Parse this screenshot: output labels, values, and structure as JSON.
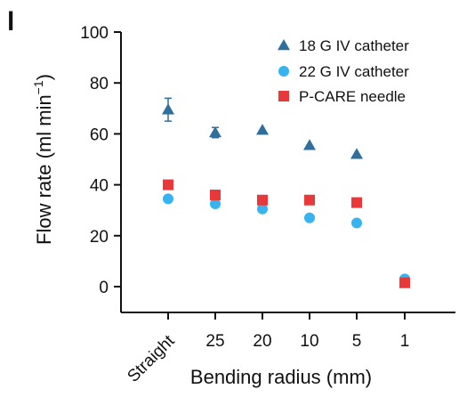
{
  "panel_label": "l",
  "chart_data": {
    "type": "scatter",
    "xlabel": "Bending radius (mm)",
    "ylabel_main": "Flow rate (ml min",
    "ylabel_sup": "−1",
    "ylabel_close": ")",
    "categories": [
      "Straight",
      "25",
      "20",
      "10",
      "5",
      "1"
    ],
    "ylim": [
      0,
      100
    ],
    "yticks": [
      0,
      20,
      40,
      60,
      80,
      100
    ],
    "legend_position": "top-right",
    "series": [
      {
        "name": "18 G IV catheter",
        "marker": "triangle",
        "color": "#2e6f9e",
        "values": [
          69.5,
          60.5,
          61.5,
          55.5,
          52,
          null
        ],
        "errors": [
          4.5,
          2,
          0,
          0,
          0,
          null
        ]
      },
      {
        "name": "22 G IV catheter",
        "marker": "circle",
        "color": "#36b4ef",
        "values": [
          34.5,
          32.5,
          30.5,
          27,
          25,
          3
        ],
        "errors": [
          0,
          0,
          0,
          0,
          0,
          0
        ]
      },
      {
        "name": "P-CARE needle",
        "marker": "square",
        "color": "#e8383a",
        "values": [
          40,
          36,
          34,
          34,
          33,
          1.5
        ],
        "errors": [
          0,
          0,
          0,
          0,
          0,
          0
        ]
      }
    ]
  }
}
